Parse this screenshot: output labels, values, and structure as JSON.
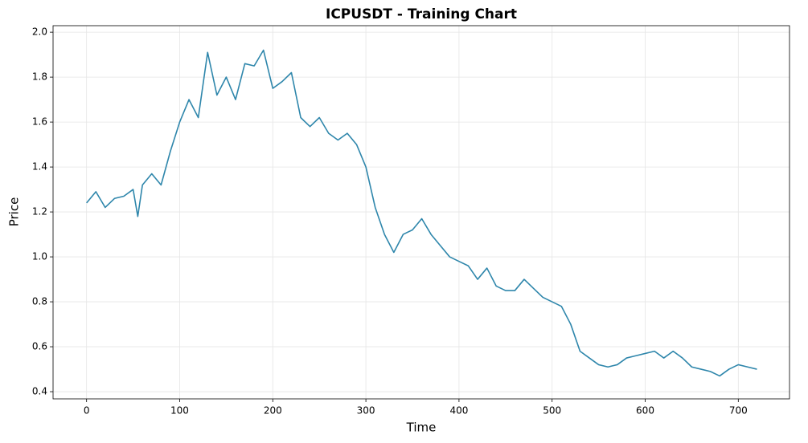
{
  "chart_data": {
    "type": "line",
    "title": "ICPUSDT - Training Chart",
    "x_label": "Time",
    "y_label": "Price",
    "x": [
      0,
      10,
      20,
      30,
      40,
      50,
      55,
      60,
      70,
      80,
      90,
      100,
      110,
      120,
      130,
      140,
      150,
      160,
      170,
      180,
      190,
      200,
      210,
      220,
      230,
      240,
      250,
      260,
      270,
      280,
      290,
      300,
      310,
      320,
      330,
      340,
      350,
      360,
      370,
      380,
      390,
      400,
      410,
      420,
      430,
      440,
      450,
      460,
      470,
      480,
      490,
      500,
      510,
      520,
      530,
      540,
      550,
      560,
      570,
      580,
      590,
      600,
      610,
      620,
      630,
      640,
      650,
      660,
      670,
      680,
      690,
      700,
      710,
      720
    ],
    "series": [
      {
        "name": "ICPUSDT",
        "color": "#2e86ab",
        "values": [
          1.24,
          1.29,
          1.22,
          1.26,
          1.27,
          1.3,
          1.18,
          1.32,
          1.37,
          1.32,
          1.47,
          1.6,
          1.7,
          1.62,
          1.91,
          1.72,
          1.8,
          1.7,
          1.86,
          1.85,
          1.92,
          1.75,
          1.78,
          1.82,
          1.62,
          1.58,
          1.62,
          1.55,
          1.52,
          1.55,
          1.5,
          1.4,
          1.22,
          1.1,
          1.02,
          1.1,
          1.12,
          1.17,
          1.1,
          1.05,
          1.0,
          0.98,
          0.96,
          0.9,
          0.95,
          0.87,
          0.85,
          0.85,
          0.9,
          0.86,
          0.82,
          0.8,
          0.78,
          0.7,
          0.58,
          0.55,
          0.52,
          0.51,
          0.52,
          0.55,
          0.56,
          0.57,
          0.58,
          0.55,
          0.58,
          0.55,
          0.51,
          0.5,
          0.49,
          0.47,
          0.5,
          0.52,
          0.51,
          0.5
        ]
      }
    ],
    "xlim": [
      -36,
      755
    ],
    "ylim": [
      0.368,
      2.029
    ],
    "xticks": [
      0,
      100,
      200,
      300,
      400,
      500,
      600,
      700
    ],
    "yticks": [
      0.4,
      0.6,
      0.8,
      {
        "value": 1,
        "label": "1.0"
      },
      1.2,
      1.4,
      1.6,
      1.8,
      {
        "value": 2,
        "label": "2.0"
      }
    ],
    "grid": true
  }
}
